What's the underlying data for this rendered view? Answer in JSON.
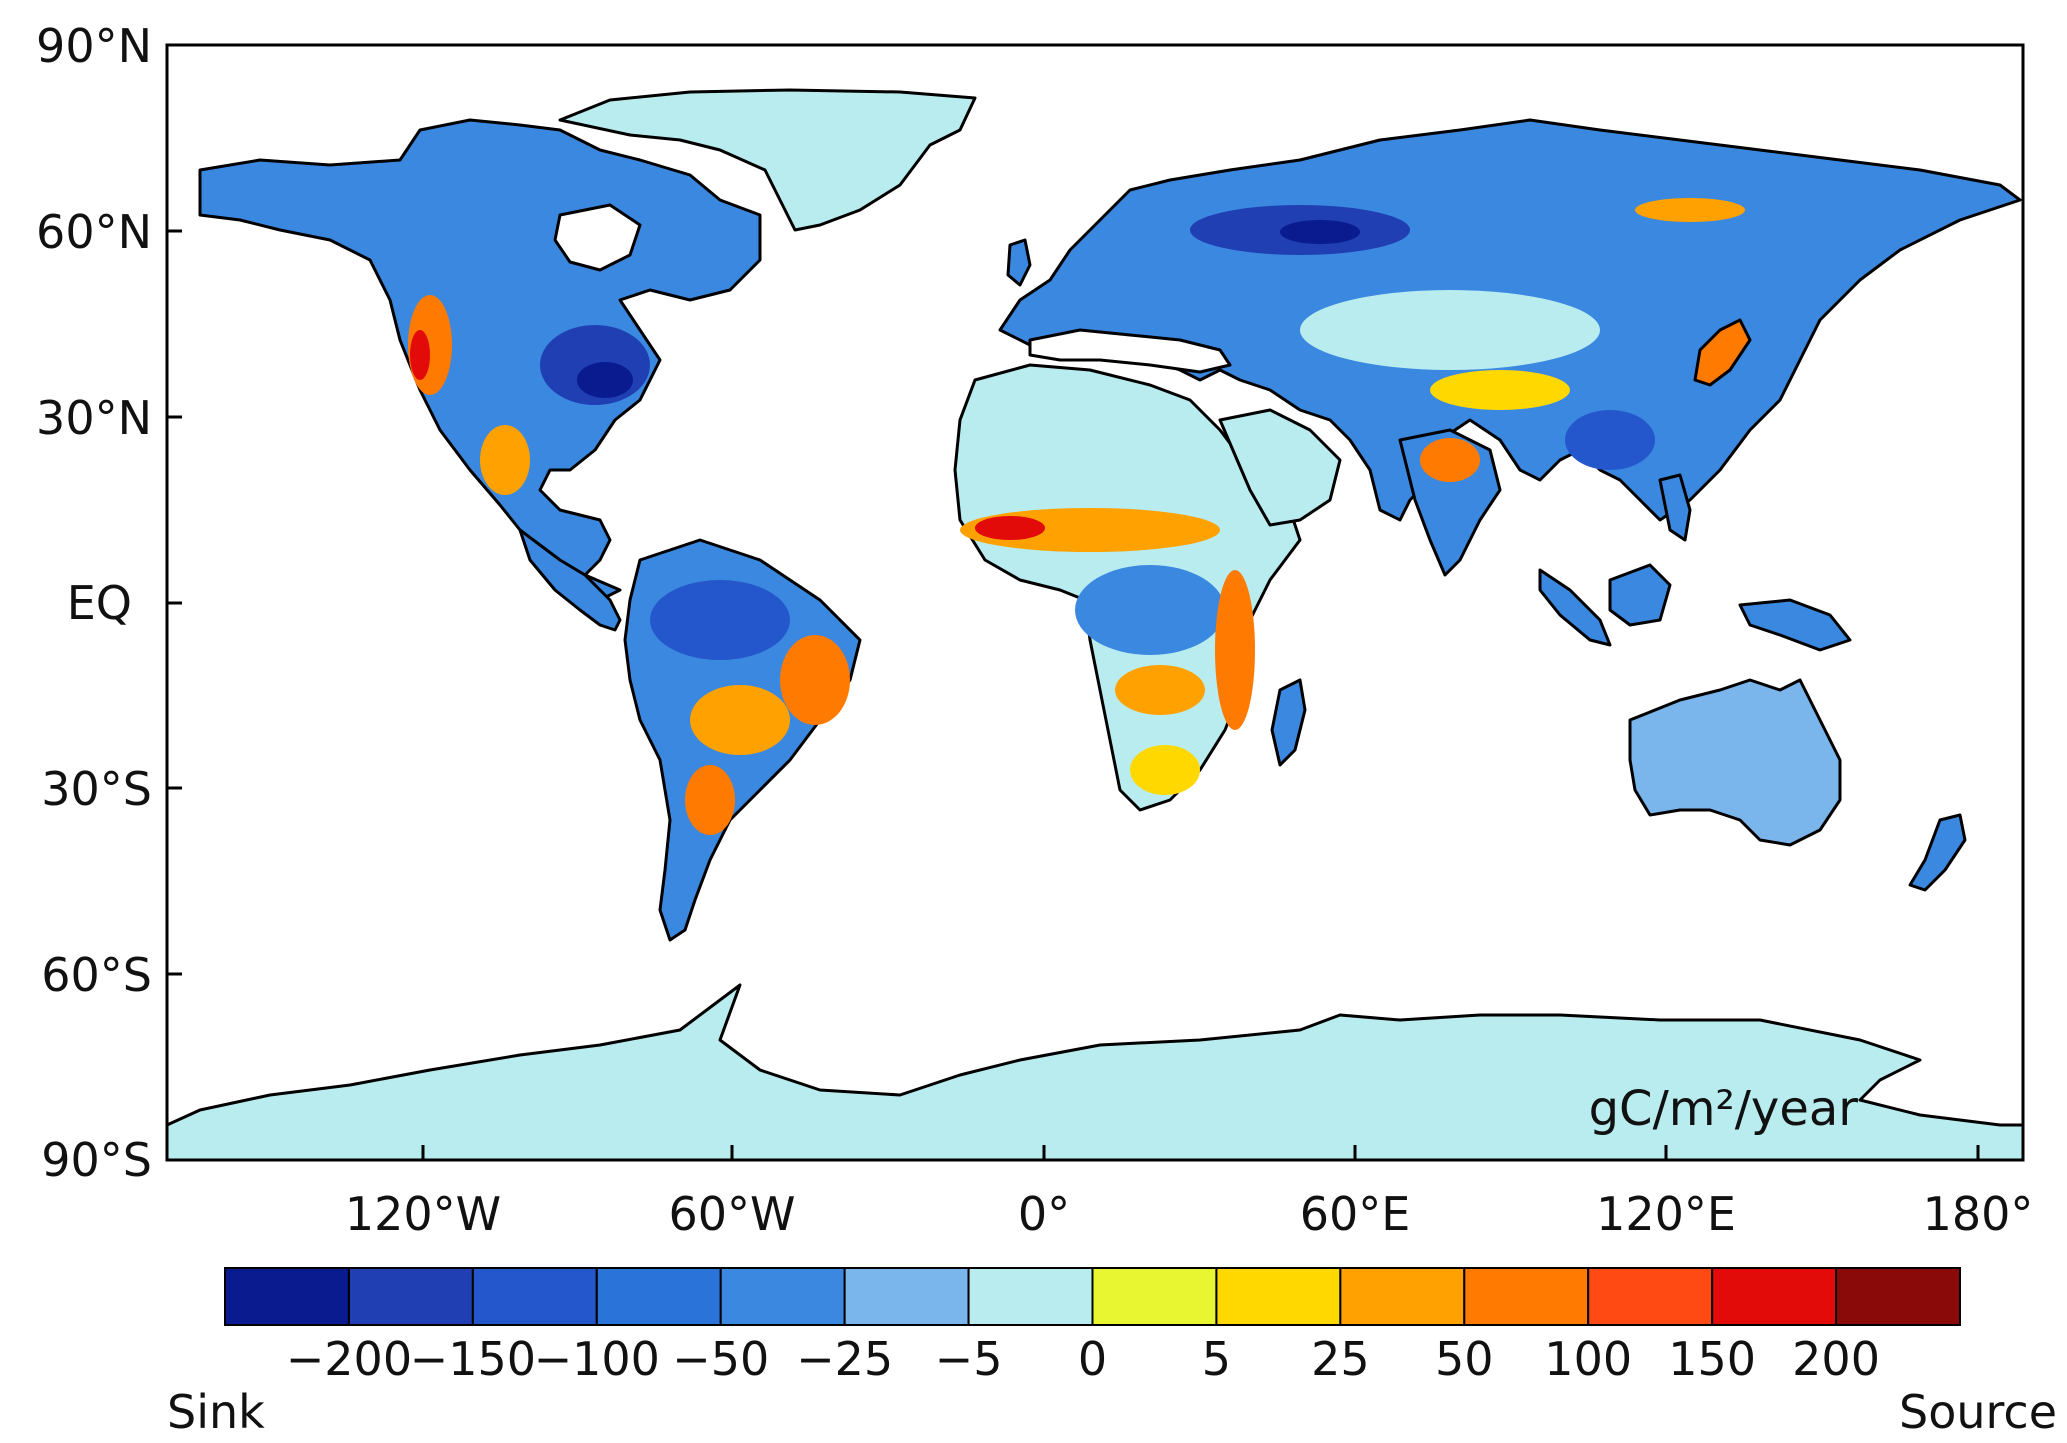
{
  "map": {
    "lat_labels": [
      "90°N",
      "60°N",
      "30°N",
      "EQ",
      "30°S",
      "60°S",
      "90°S"
    ],
    "lon_labels": [
      "120°W",
      "60°W",
      "0°",
      "60°E",
      "120°E",
      "180°"
    ],
    "unit": "gC/m²/year",
    "ocean_color": "#ffffff",
    "desert_color": "#b8ecef",
    "coast_color": "#000000"
  },
  "colorbar": {
    "colors": [
      "#0a1a8f",
      "#1f3fb3",
      "#2457cc",
      "#2a74d9",
      "#3a88e0",
      "#7ab6ec",
      "#b8ecef",
      "#e8f531",
      "#ffd800",
      "#ffa100",
      "#ff7a00",
      "#ff4a14",
      "#e30a0a",
      "#8a0a0a"
    ],
    "tick_labels": [
      "−200",
      "−150",
      "−100",
      "−50",
      "−25",
      "−5",
      "0",
      "5",
      "25",
      "50",
      "100",
      "150",
      "200"
    ],
    "left_label": "Sink",
    "right_label": "Source"
  }
}
